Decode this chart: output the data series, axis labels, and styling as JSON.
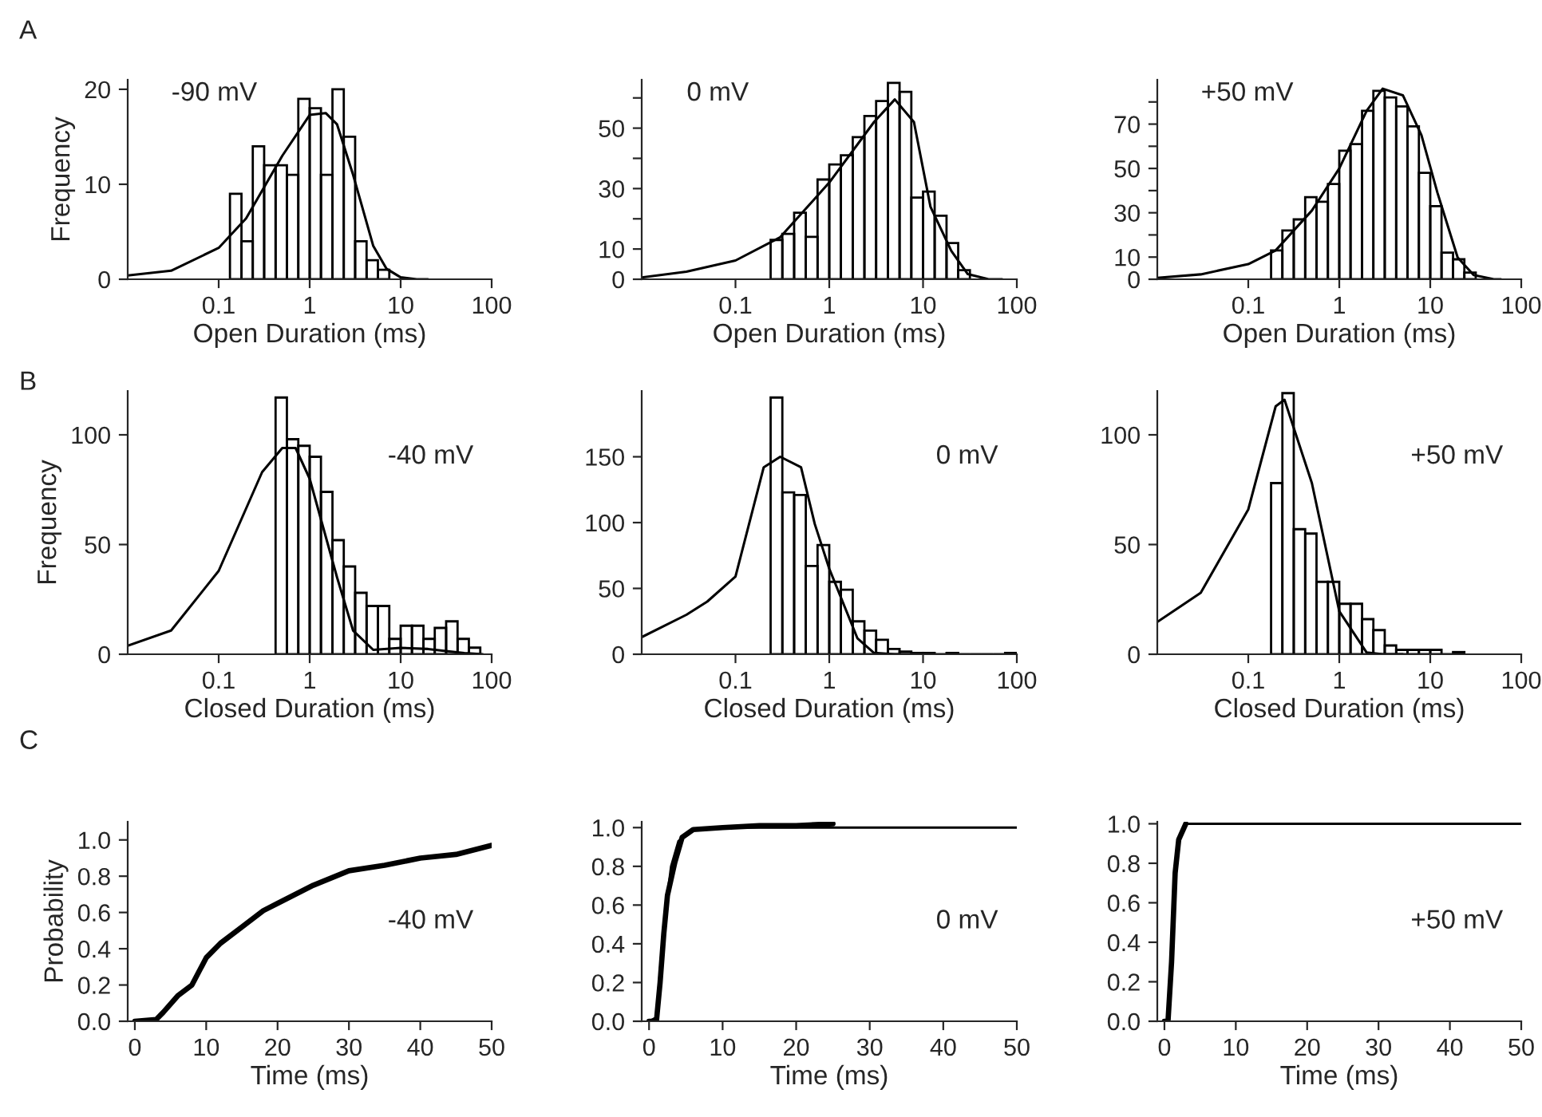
{
  "chart_data": [
    {
      "type": "histogram",
      "title": "-90 mV",
      "ylabel": "Frequency",
      "xlabel": "Open Duration (ms)",
      "annotations": [
        "A"
      ],
      "log": "x",
      "color": "#000000",
      "bins": [
        0.133,
        0.178,
        0.237,
        0.316,
        0.422,
        0.562,
        0.75,
        1.0,
        1.33,
        1.78,
        2.37,
        3.16,
        4.22,
        5.62,
        7.5
      ],
      "values": [
        9,
        4,
        14,
        12,
        12,
        11,
        19,
        18,
        11,
        20,
        15,
        4,
        2,
        1
      ],
      "series": [
        {
          "type": "line",
          "color": "#000000",
          "x": [
            0.01,
            0.03,
            0.1,
            0.2,
            0.5,
            1,
            1.5,
            2,
            3,
            5,
            7,
            10,
            15,
            20
          ],
          "values": [
            0.4,
            0.9,
            3.3,
            6.4,
            13,
            17.3,
            17.5,
            16.3,
            11,
            3.5,
            1.1,
            0.2,
            0,
            0
          ]
        }
      ],
      "xlim": [
        0.01,
        100
      ],
      "xticks": [
        0.1,
        1,
        10,
        100
      ],
      "ylim": [
        0,
        21
      ],
      "yticks": [
        0,
        10,
        20
      ]
    },
    {
      "type": "histogram",
      "title": "0 mV",
      "xlabel": "Open Duration (ms)",
      "log": "x",
      "color": "#000000",
      "bins": [
        0.237,
        0.316,
        0.422,
        0.562,
        0.75,
        1.0,
        1.33,
        1.78,
        2.37,
        3.16,
        4.22,
        5.62,
        7.5,
        10,
        13.3,
        17.8,
        23.7,
        31.6
      ],
      "values": [
        13,
        15,
        22,
        14,
        33,
        38,
        41,
        47,
        54,
        59,
        65,
        62,
        27,
        29,
        21,
        12,
        3
      ],
      "series": [
        {
          "type": "line",
          "color": "#000000",
          "x": [
            0.01,
            0.03,
            0.1,
            0.3,
            1,
            3,
            5,
            8,
            12,
            20,
            30,
            50,
            70
          ],
          "values": [
            0.6,
            2.5,
            6.2,
            13.9,
            32,
            52,
            59.5,
            52,
            24,
            9.4,
            1.7,
            0,
            0
          ]
        }
      ],
      "xlim": [
        0.01,
        100
      ],
      "xticks": [
        0.1,
        1,
        10,
        100
      ],
      "ylim": [
        0,
        66
      ],
      "yticks": [
        0,
        10,
        {
          "value": 20,
          "label": null
        },
        30,
        {
          "value": 40,
          "label": null
        },
        50,
        {
          "value": 60,
          "label": null
        }
      ]
    },
    {
      "type": "histogram",
      "title": "+50 mV",
      "xlabel": "Open Duration (ms)",
      "log": "x",
      "color": "#000000",
      "bins": [
        0.178,
        0.237,
        0.316,
        0.422,
        0.562,
        0.75,
        1.0,
        1.33,
        1.78,
        2.37,
        3.16,
        4.22,
        5.62,
        7.5,
        10,
        13.3,
        17.8,
        23.7,
        31.6
      ],
      "values": [
        13,
        22,
        27,
        37,
        35,
        43,
        58,
        61,
        76,
        85,
        82,
        78,
        69,
        48,
        33,
        12,
        9,
        3
      ],
      "series": [
        {
          "type": "line",
          "color": "#000000",
          "x": [
            0.01,
            0.03,
            0.1,
            0.2,
            0.5,
            1,
            2,
            3,
            5,
            8,
            12,
            20,
            30,
            50,
            60
          ],
          "values": [
            0.6,
            2.2,
            6.8,
            13,
            31,
            50,
            76,
            86,
            83,
            65,
            39,
            9.8,
            1.9,
            0,
            0
          ]
        }
      ],
      "xlim": [
        0.01,
        100
      ],
      "xticks": [
        0.1,
        1,
        10,
        100
      ],
      "ylim": [
        0,
        90
      ],
      "yticks": [
        0,
        10,
        {
          "value": 20,
          "label": null
        },
        30,
        {
          "value": 40,
          "label": null
        },
        50,
        {
          "value": 60,
          "label": null
        },
        70,
        {
          "value": 80,
          "label": null
        }
      ]
    },
    {
      "type": "histogram",
      "title": "-40 mV",
      "ylabel": "Frequency",
      "xlabel": "Closed Duration (ms)",
      "annotations": [
        "B"
      ],
      "log": "x",
      "color": "#000000",
      "bins": [
        0.422,
        0.562,
        0.75,
        1.0,
        1.33,
        1.78,
        2.37,
        3.16,
        4.22,
        5.62,
        7.5,
        10,
        13.3,
        17.8,
        23.7,
        31.6,
        42.2,
        56.2,
        75
      ],
      "values": [
        117,
        98,
        95,
        90,
        74,
        52,
        40,
        28,
        22,
        22,
        7,
        13,
        13,
        7,
        12,
        15,
        7,
        3
      ],
      "series": [
        {
          "type": "line",
          "color": "#000000",
          "x": [
            0.01,
            0.03,
            0.1,
            0.3,
            0.5,
            0.7,
            1,
            2,
            3,
            5,
            10,
            20,
            50,
            80
          ],
          "values": [
            3.9,
            10.8,
            38,
            83,
            94,
            94,
            80,
            35,
            10.8,
            2,
            2.9,
            2.4,
            0.5,
            0
          ]
        }
      ],
      "xlim": [
        0.01,
        100
      ],
      "xticks": [
        0.1,
        1,
        10,
        100
      ],
      "ylim": [
        0,
        120
      ],
      "yticks": [
        0,
        50,
        100
      ]
    },
    {
      "type": "histogram",
      "title": "0 mV",
      "xlabel": "Closed Duration (ms)",
      "log": "x",
      "color": "#000000",
      "bins": [
        0.237,
        0.316,
        0.422,
        0.562,
        0.75,
        1.0,
        1.33,
        1.78,
        2.37,
        3.16,
        4.22,
        5.62,
        7.5,
        10,
        13.3,
        17.8,
        23.7,
        31.6,
        42.2,
        56.2,
        75,
        100
      ],
      "values": [
        195,
        123,
        121,
        67,
        83,
        55,
        49,
        25,
        18,
        11,
        4,
        2,
        1,
        1,
        0,
        1,
        0,
        0,
        0,
        0,
        1
      ],
      "series": [
        {
          "type": "line",
          "color": "#000000",
          "x": [
            0.01,
            0.03,
            0.05,
            0.1,
            0.2,
            0.3,
            0.5,
            0.7,
            1,
            2,
            3,
            5,
            10
          ],
          "values": [
            13,
            30,
            40,
            59,
            142,
            150,
            142,
            99,
            65,
            12,
            1,
            0,
            0
          ]
        }
      ],
      "xlim": [
        0.01,
        100
      ],
      "xticks": [
        0.1,
        1,
        10,
        100
      ],
      "ylim": [
        0,
        200
      ],
      "yticks": [
        0,
        50,
        100,
        150
      ]
    },
    {
      "type": "histogram",
      "title": "+50 mV",
      "xlabel": "Closed Duration (ms)",
      "log": "x",
      "color": "#000000",
      "bins": [
        0.178,
        0.237,
        0.316,
        0.422,
        0.562,
        0.75,
        1.0,
        1.33,
        1.78,
        2.37,
        3.16,
        4.22,
        5.62,
        7.5,
        10,
        13.3,
        17.8,
        23.7
      ],
      "values": [
        78,
        119,
        57,
        55,
        33,
        33,
        23,
        23,
        16,
        11,
        4,
        2,
        2,
        2,
        2,
        0,
        1
      ],
      "series": [
        {
          "type": "line",
          "color": "#000000",
          "x": [
            0.01,
            0.03,
            0.1,
            0.2,
            0.25,
            0.5,
            1,
            2,
            3,
            5
          ],
          "values": [
            14.7,
            28,
            66,
            113,
            116,
            78,
            19.6,
            0.8,
            0,
            0
          ]
        }
      ],
      "xlim": [
        0.01,
        100
      ],
      "xticks": [
        0.1,
        1,
        10,
        100
      ],
      "ylim": [
        0,
        120
      ],
      "yticks": [
        0,
        50,
        100
      ]
    },
    {
      "type": "line",
      "title": "-40 mV",
      "ylabel": "Probability",
      "xlabel": "Time (ms)",
      "annotations": [
        "C"
      ],
      "series": [
        {
          "color": "#000000",
          "x": [
            0,
            3,
            4,
            6,
            8,
            10,
            12,
            15,
            18,
            20,
            25,
            30,
            35,
            40,
            45,
            50
          ],
          "values": [
            0,
            0.01,
            0.05,
            0.14,
            0.2,
            0.35,
            0.43,
            0.52,
            0.61,
            0.65,
            0.75,
            0.83,
            0.86,
            0.9,
            0.92,
            0.97
          ]
        }
      ],
      "xlim": [
        -1,
        50
      ],
      "xticks": [
        0,
        10,
        20,
        30,
        40,
        50
      ],
      "ylim": [
        0,
        1.1
      ],
      "yticks": [
        {
          "value": 0,
          "label": "0.0"
        },
        0.2,
        0.4,
        0.6,
        0.8,
        {
          "value": 1,
          "label": "1.0"
        }
      ]
    },
    {
      "type": "line",
      "title": "0 mV",
      "xlabel": "Time (ms)",
      "series": [
        {
          "color": "#000000",
          "x": [
            0,
            1,
            1.5,
            2,
            2.5,
            3.5,
            4.5,
            6,
            10,
            15,
            20,
            25
          ],
          "values": [
            0,
            0,
            0.2,
            0.45,
            0.65,
            0.82,
            0.95,
            0.99,
            1.0,
            1.01,
            1.01,
            1.02
          ]
        },
        {
          "color": "#000000",
          "x": [
            0,
            1,
            2,
            3,
            4,
            6,
            10,
            50
          ],
          "values": [
            0,
            0.02,
            0.5,
            0.8,
            0.93,
            0.99,
            1.0,
            1.0
          ]
        }
      ],
      "xlim": [
        -1,
        50
      ],
      "xticks": [
        0,
        10,
        20,
        30,
        40,
        50
      ],
      "ylim": [
        0,
        1.03
      ],
      "yticks": [
        {
          "value": 0,
          "label": "0.0"
        },
        0.2,
        0.4,
        0.6,
        0.8,
        {
          "value": 1,
          "label": "1.0"
        }
      ]
    },
    {
      "type": "line",
      "title": "+50 mV",
      "xlabel": "Time (ms)",
      "series": [
        {
          "color": "#000000",
          "x": [
            0,
            0.5,
            1,
            1.5,
            2,
            3
          ],
          "values": [
            0,
            0,
            0.3,
            0.75,
            0.92,
            1.0
          ]
        },
        {
          "color": "#000000",
          "x": [
            0,
            0.5,
            1,
            1.5,
            2,
            3,
            50
          ],
          "values": [
            0,
            0.01,
            0.32,
            0.76,
            0.93,
            1.0,
            1.0
          ]
        }
      ],
      "xlim": [
        -1,
        50
      ],
      "xticks": [
        0,
        10,
        20,
        30,
        40,
        50
      ],
      "ylim": [
        0,
        1.01
      ],
      "yticks": [
        {
          "value": 0,
          "label": "0.0"
        },
        0.2,
        0.4,
        0.6,
        0.8,
        {
          "value": 1,
          "label": "1.0"
        }
      ]
    }
  ]
}
